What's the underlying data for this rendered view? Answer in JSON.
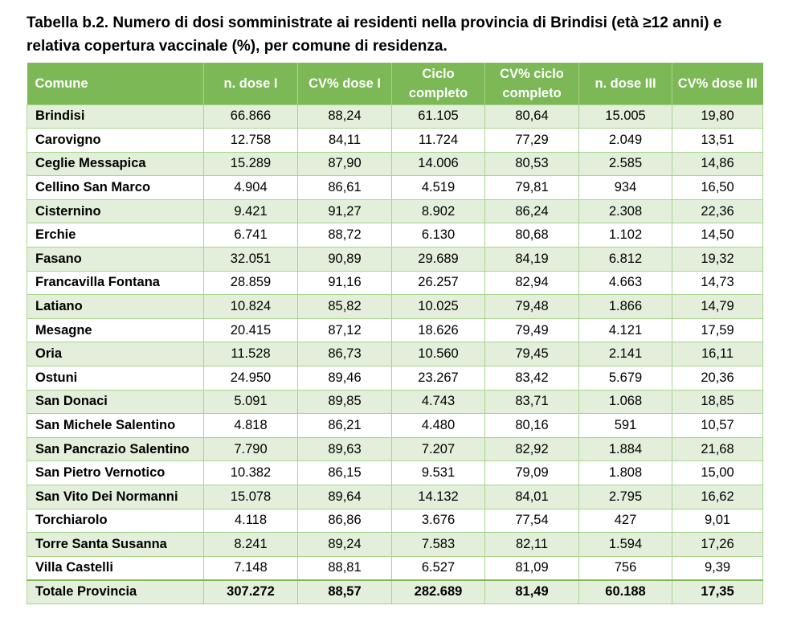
{
  "caption": "Tabella b.2. Numero di dosi somministrate ai residenti nella provincia di Brindisi (età ≥12 anni) e relativa copertura vaccinale (%), per comune di residenza.",
  "table": {
    "headers": [
      "Comune",
      "n. dose I",
      "CV% dose I",
      "Ciclo completo",
      "CV% ciclo completo",
      "n. dose III",
      "CV% dose III"
    ],
    "rows": [
      [
        "Brindisi",
        "66.866",
        "88,24",
        "61.105",
        "80,64",
        "15.005",
        "19,80"
      ],
      [
        "Carovigno",
        "12.758",
        "84,11",
        "11.724",
        "77,29",
        "2.049",
        "13,51"
      ],
      [
        "Ceglie Messapica",
        "15.289",
        "87,90",
        "14.006",
        "80,53",
        "2.585",
        "14,86"
      ],
      [
        "Cellino San Marco",
        "4.904",
        "86,61",
        "4.519",
        "79,81",
        "934",
        "16,50"
      ],
      [
        "Cisternino",
        "9.421",
        "91,27",
        "8.902",
        "86,24",
        "2.308",
        "22,36"
      ],
      [
        "Erchie",
        "6.741",
        "88,72",
        "6.130",
        "80,68",
        "1.102",
        "14,50"
      ],
      [
        "Fasano",
        "32.051",
        "90,89",
        "29.689",
        "84,19",
        "6.812",
        "19,32"
      ],
      [
        "Francavilla Fontana",
        "28.859",
        "91,16",
        "26.257",
        "82,94",
        "4.663",
        "14,73"
      ],
      [
        "Latiano",
        "10.824",
        "85,82",
        "10.025",
        "79,48",
        "1.866",
        "14,79"
      ],
      [
        "Mesagne",
        "20.415",
        "87,12",
        "18.626",
        "79,49",
        "4.121",
        "17,59"
      ],
      [
        "Oria",
        "11.528",
        "86,73",
        "10.560",
        "79,45",
        "2.141",
        "16,11"
      ],
      [
        "Ostuni",
        "24.950",
        "89,46",
        "23.267",
        "83,42",
        "5.679",
        "20,36"
      ],
      [
        "San Donaci",
        "5.091",
        "89,85",
        "4.743",
        "83,71",
        "1.068",
        "18,85"
      ],
      [
        "San Michele Salentino",
        "4.818",
        "86,21",
        "4.480",
        "80,16",
        "591",
        "10,57"
      ],
      [
        "San Pancrazio Salentino",
        "7.790",
        "89,63",
        "7.207",
        "82,92",
        "1.884",
        "21,68"
      ],
      [
        "San Pietro Vernotico",
        "10.382",
        "86,15",
        "9.531",
        "79,09",
        "1.808",
        "15,00"
      ],
      [
        "San Vito Dei Normanni",
        "15.078",
        "89,64",
        "14.132",
        "84,01",
        "2.795",
        "16,62"
      ],
      [
        "Torchiarolo",
        "4.118",
        "86,86",
        "3.676",
        "77,54",
        "427",
        "9,01"
      ],
      [
        "Torre Santa Susanna",
        "8.241",
        "89,24",
        "7.583",
        "82,11",
        "1.594",
        "17,26"
      ],
      [
        "Villa Castelli",
        "7.148",
        "88,81",
        "6.527",
        "81,09",
        "756",
        "9,39"
      ]
    ],
    "total": [
      "Totale Provincia",
      "307.272",
      "88,57",
      "282.689",
      "81,49",
      "60.188",
      "17,35"
    ]
  },
  "colors": {
    "header_bg": "#7cb856",
    "row_alt_bg": "#e3efda",
    "border": "#a9d48f"
  }
}
